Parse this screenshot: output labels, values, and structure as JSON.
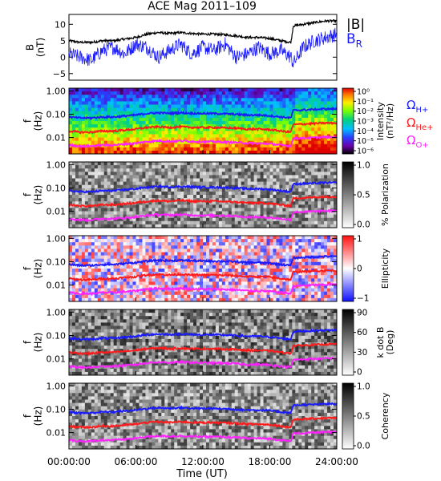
{
  "title": "ACE Mag 2011–109",
  "colors": {
    "B_total": "#000000",
    "B_R": "#1a1aff",
    "H": "#1a1aff",
    "He": "#ff1a1a",
    "O": "#ff22ff"
  },
  "chart_data": [
    {
      "type": "line",
      "ylabel": "B\n(nT)",
      "ylim": [
        -7,
        13
      ],
      "yticks": [
        "10",
        "5",
        "0",
        "−5"
      ],
      "legend": [
        "|B|",
        "B_R"
      ],
      "series": [
        {
          "name": "|B|",
          "x": [
            0,
            1,
            2,
            3,
            4,
            5,
            6,
            7,
            8,
            9,
            10,
            11,
            12,
            13,
            14,
            15,
            16,
            17,
            18,
            19,
            19.9,
            20.1,
            21,
            22,
            23,
            24
          ],
          "values": [
            5,
            4.5,
            4.5,
            5,
            5,
            5.5,
            6,
            7,
            7.5,
            7.2,
            7.5,
            7.2,
            7,
            7,
            6.8,
            6.5,
            6,
            6,
            5.7,
            5,
            4.5,
            9.5,
            10,
            10.5,
            11,
            11
          ]
        },
        {
          "name": "B_R",
          "x": [
            0,
            1,
            2,
            3,
            4,
            5,
            6,
            7,
            8,
            9,
            10,
            11,
            12,
            13,
            14,
            15,
            16,
            17,
            18,
            19,
            19.9,
            20.1,
            21,
            22,
            23,
            24
          ],
          "values": [
            1,
            0,
            -1,
            2,
            3,
            1,
            4,
            3,
            0,
            2,
            4,
            1,
            3,
            2,
            4,
            0,
            1,
            3,
            1,
            2,
            0,
            -2,
            3,
            5,
            6,
            7
          ]
        }
      ]
    },
    {
      "type": "heatmap",
      "ylabel": "f\n(Hz)",
      "yscale": "log",
      "ylim": [
        0.002,
        1
      ],
      "yticks": [
        "1.00",
        "0.10",
        "0.01"
      ],
      "colorbar": {
        "label": "Intensity\n(nT²/Hz)",
        "ticks": [
          "10⁰",
          "10⁻¹",
          "10⁻²",
          "10⁻³",
          "10⁻⁴",
          "10⁻⁵",
          "10⁻⁶"
        ]
      },
      "gyro_labels": [
        "ΩH+",
        "ΩHe+",
        "ΩO+"
      ]
    },
    {
      "type": "heatmap",
      "ylabel": "f\n(Hz)",
      "yscale": "log",
      "yticks": [
        "1.00",
        "0.10",
        "0.01"
      ],
      "colorbar": {
        "label": "% Polarization",
        "ticks": [
          "1.0",
          "0.5",
          "0.0"
        ]
      }
    },
    {
      "type": "heatmap",
      "ylabel": "f\n(Hz)",
      "yscale": "log",
      "yticks": [
        "1.00",
        "0.10",
        "0.01"
      ],
      "colorbar": {
        "label": "Ellipticity",
        "ticks": [
          "1",
          "0",
          "−1"
        ]
      }
    },
    {
      "type": "heatmap",
      "ylabel": "f\n(Hz)",
      "yscale": "log",
      "yticks": [
        "1.00",
        "0.10",
        "0.01"
      ],
      "colorbar": {
        "label": "k dot B\n(Deg)",
        "ticks": [
          "90",
          "60",
          "30",
          "0"
        ]
      }
    },
    {
      "type": "heatmap",
      "ylabel": "f\n(Hz)",
      "yscale": "log",
      "yticks": [
        "1.00",
        "0.10",
        "0.01"
      ],
      "colorbar": {
        "label": "Coherency",
        "ticks": [
          "1.0",
          "0.5",
          "0.0"
        ]
      }
    }
  ],
  "gyro_curves": {
    "x": [
      0,
      1,
      2,
      3,
      4,
      5,
      6,
      7,
      8,
      9,
      10,
      11,
      12,
      13,
      14,
      15,
      16,
      17,
      18,
      19,
      19.9,
      20.1,
      21,
      22,
      23,
      24
    ],
    "H_hz": [
      0.076,
      0.069,
      0.069,
      0.076,
      0.076,
      0.084,
      0.092,
      0.107,
      0.115,
      0.11,
      0.115,
      0.11,
      0.107,
      0.107,
      0.104,
      0.099,
      0.092,
      0.092,
      0.087,
      0.076,
      0.069,
      0.145,
      0.153,
      0.16,
      0.168,
      0.168
    ],
    "He_hz": [
      0.019,
      0.017,
      0.017,
      0.019,
      0.019,
      0.021,
      0.023,
      0.027,
      0.029,
      0.027,
      0.029,
      0.027,
      0.027,
      0.027,
      0.026,
      0.025,
      0.023,
      0.023,
      0.022,
      0.019,
      0.017,
      0.036,
      0.038,
      0.04,
      0.042,
      0.042
    ],
    "O_hz": [
      0.0048,
      0.0043,
      0.0043,
      0.0048,
      0.0048,
      0.0052,
      0.0057,
      0.0067,
      0.0072,
      0.0069,
      0.0072,
      0.0069,
      0.0067,
      0.0067,
      0.0065,
      0.0062,
      0.0057,
      0.0057,
      0.0054,
      0.0048,
      0.0043,
      0.0091,
      0.0095,
      0.01,
      0.0105,
      0.0105
    ]
  },
  "x_axis": {
    "label": "Time (UT)",
    "ticks": [
      "00:00:00",
      "06:00:00",
      "12:00:00",
      "18:00:00",
      "24:00:00"
    ],
    "range": [
      0,
      24
    ]
  }
}
